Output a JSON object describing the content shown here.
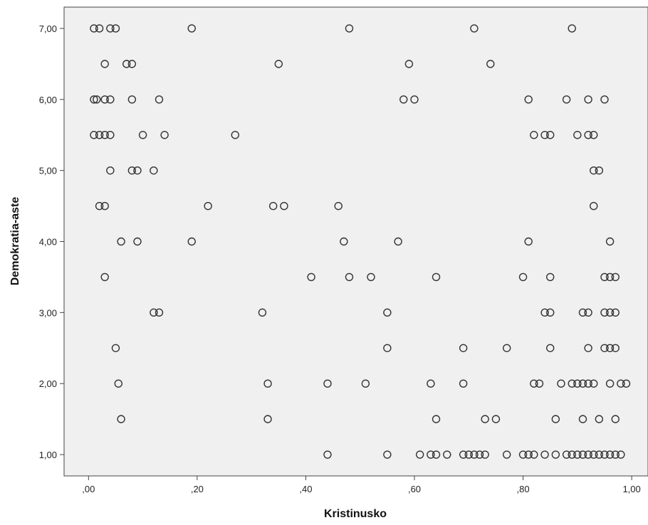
{
  "chart_data": {
    "type": "scatter",
    "title": "",
    "xlabel": "Kristinusko",
    "ylabel": "Demokratia-aste",
    "xlim": [
      -0.045,
      1.03
    ],
    "ylim": [
      0.7,
      7.3
    ],
    "x_ticks": [
      0,
      0.2,
      0.4,
      0.6,
      0.8,
      1.0
    ],
    "x_tick_labels": [
      ",00",
      ",20",
      ",40",
      ",60",
      ",80",
      "1,00"
    ],
    "y_ticks": [
      1,
      2,
      3,
      4,
      5,
      6,
      7
    ],
    "y_tick_labels": [
      "1,00",
      "2,00",
      "3,00",
      "4,00",
      "5,00",
      "6,00",
      "7,00"
    ],
    "grid": false,
    "legend": "none",
    "colors": {
      "marker_stroke": "#333333",
      "plot_background": "#f0f0f0",
      "frame": "#444444"
    },
    "points": [
      [
        0.01,
        7
      ],
      [
        0.02,
        7
      ],
      [
        0.04,
        7
      ],
      [
        0.05,
        7
      ],
      [
        0.19,
        7
      ],
      [
        0.48,
        7
      ],
      [
        0.71,
        7
      ],
      [
        0.89,
        7
      ],
      [
        0.03,
        6.5
      ],
      [
        0.07,
        6.5
      ],
      [
        0.08,
        6.5
      ],
      [
        0.35,
        6.5
      ],
      [
        0.59,
        6.5
      ],
      [
        0.74,
        6.5
      ],
      [
        0.01,
        6
      ],
      [
        0.015,
        6
      ],
      [
        0.03,
        6
      ],
      [
        0.04,
        6
      ],
      [
        0.08,
        6
      ],
      [
        0.13,
        6
      ],
      [
        0.58,
        6
      ],
      [
        0.6,
        6
      ],
      [
        0.81,
        6
      ],
      [
        0.88,
        6
      ],
      [
        0.92,
        6
      ],
      [
        0.95,
        6
      ],
      [
        0.01,
        5.5
      ],
      [
        0.02,
        5.5
      ],
      [
        0.03,
        5.5
      ],
      [
        0.04,
        5.5
      ],
      [
        0.1,
        5.5
      ],
      [
        0.14,
        5.5
      ],
      [
        0.27,
        5.5
      ],
      [
        0.82,
        5.5
      ],
      [
        0.84,
        5.5
      ],
      [
        0.85,
        5.5
      ],
      [
        0.9,
        5.5
      ],
      [
        0.92,
        5.5
      ],
      [
        0.93,
        5.5
      ],
      [
        0.04,
        5
      ],
      [
        0.08,
        5
      ],
      [
        0.09,
        5
      ],
      [
        0.12,
        5
      ],
      [
        0.93,
        5
      ],
      [
        0.94,
        5
      ],
      [
        0.02,
        4.5
      ],
      [
        0.03,
        4.5
      ],
      [
        0.22,
        4.5
      ],
      [
        0.34,
        4.5
      ],
      [
        0.36,
        4.5
      ],
      [
        0.46,
        4.5
      ],
      [
        0.93,
        4.5
      ],
      [
        0.06,
        4
      ],
      [
        0.09,
        4
      ],
      [
        0.19,
        4
      ],
      [
        0.47,
        4
      ],
      [
        0.57,
        4
      ],
      [
        0.81,
        4
      ],
      [
        0.96,
        4
      ],
      [
        0.03,
        3.5
      ],
      [
        0.41,
        3.5
      ],
      [
        0.48,
        3.5
      ],
      [
        0.52,
        3.5
      ],
      [
        0.64,
        3.5
      ],
      [
        0.8,
        3.5
      ],
      [
        0.85,
        3.5
      ],
      [
        0.95,
        3.5
      ],
      [
        0.96,
        3.5
      ],
      [
        0.97,
        3.5
      ],
      [
        0.12,
        3
      ],
      [
        0.13,
        3
      ],
      [
        0.32,
        3
      ],
      [
        0.55,
        3
      ],
      [
        0.84,
        3
      ],
      [
        0.85,
        3
      ],
      [
        0.91,
        3
      ],
      [
        0.92,
        3
      ],
      [
        0.95,
        3
      ],
      [
        0.96,
        3
      ],
      [
        0.97,
        3
      ],
      [
        0.05,
        2.5
      ],
      [
        0.55,
        2.5
      ],
      [
        0.69,
        2.5
      ],
      [
        0.77,
        2.5
      ],
      [
        0.85,
        2.5
      ],
      [
        0.92,
        2.5
      ],
      [
        0.95,
        2.5
      ],
      [
        0.96,
        2.5
      ],
      [
        0.97,
        2.5
      ],
      [
        0.055,
        2
      ],
      [
        0.33,
        2
      ],
      [
        0.44,
        2
      ],
      [
        0.51,
        2
      ],
      [
        0.63,
        2
      ],
      [
        0.69,
        2
      ],
      [
        0.82,
        2
      ],
      [
        0.83,
        2
      ],
      [
        0.87,
        2
      ],
      [
        0.89,
        2
      ],
      [
        0.9,
        2
      ],
      [
        0.91,
        2
      ],
      [
        0.92,
        2
      ],
      [
        0.93,
        2
      ],
      [
        0.96,
        2
      ],
      [
        0.98,
        2
      ],
      [
        0.99,
        2
      ],
      [
        0.06,
        1.5
      ],
      [
        0.33,
        1.5
      ],
      [
        0.64,
        1.5
      ],
      [
        0.73,
        1.5
      ],
      [
        0.75,
        1.5
      ],
      [
        0.86,
        1.5
      ],
      [
        0.91,
        1.5
      ],
      [
        0.94,
        1.5
      ],
      [
        0.97,
        1.5
      ],
      [
        0.44,
        1
      ],
      [
        0.55,
        1
      ],
      [
        0.61,
        1
      ],
      [
        0.63,
        1
      ],
      [
        0.64,
        1
      ],
      [
        0.66,
        1
      ],
      [
        0.69,
        1
      ],
      [
        0.7,
        1
      ],
      [
        0.71,
        1
      ],
      [
        0.72,
        1
      ],
      [
        0.73,
        1
      ],
      [
        0.77,
        1
      ],
      [
        0.8,
        1
      ],
      [
        0.81,
        1
      ],
      [
        0.82,
        1
      ],
      [
        0.84,
        1
      ],
      [
        0.86,
        1
      ],
      [
        0.88,
        1
      ],
      [
        0.89,
        1
      ],
      [
        0.9,
        1
      ],
      [
        0.91,
        1
      ],
      [
        0.92,
        1
      ],
      [
        0.93,
        1
      ],
      [
        0.94,
        1
      ],
      [
        0.95,
        1
      ],
      [
        0.96,
        1
      ],
      [
        0.97,
        1
      ],
      [
        0.98,
        1
      ]
    ]
  }
}
